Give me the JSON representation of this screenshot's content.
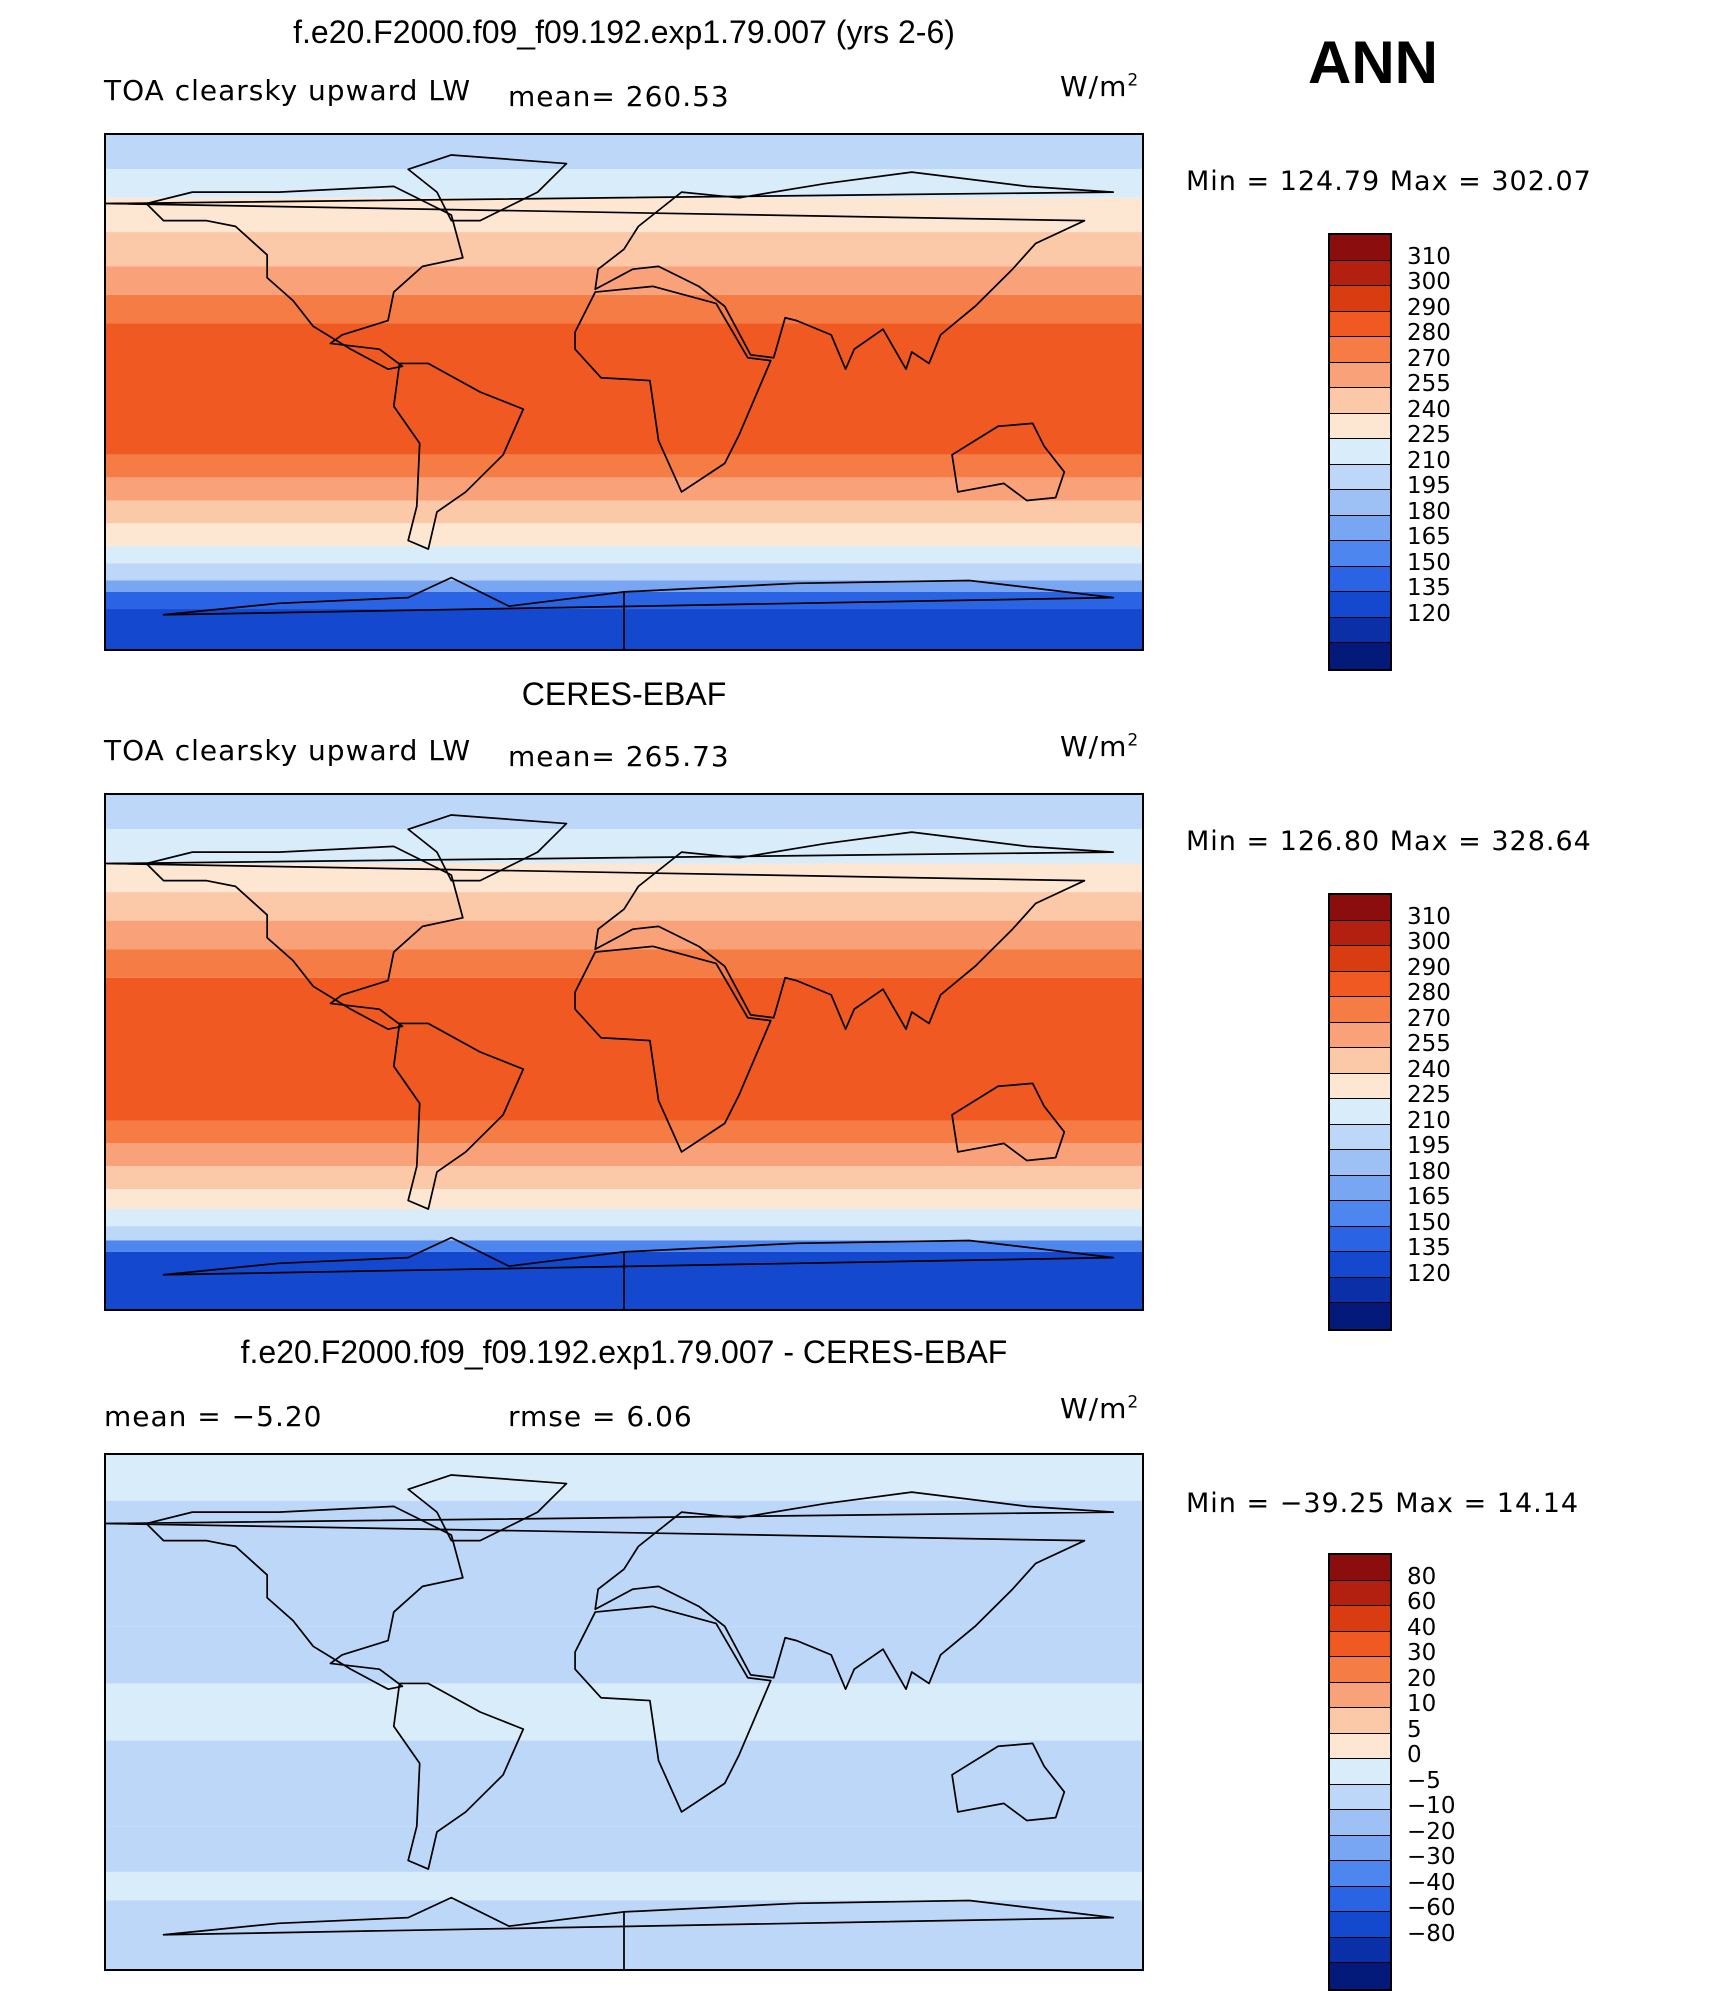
{
  "season": "ANN",
  "panels": [
    {
      "title": "f.e20.F2000.f09_f09.192.exp1.79.007 (yrs 2-6)",
      "left_text": "TOA clearsky upward LW",
      "mid_text": "mean=  260.53",
      "units_base": "W/m",
      "units_exp": "2",
      "minmax": "Min  =  124.79  Max  =  302.07",
      "colorbar": {
        "labels": [
          "310",
          "300",
          "290",
          "280",
          "270",
          "255",
          "240",
          "225",
          "210",
          "195",
          "180",
          "165",
          "150",
          "135",
          "120"
        ],
        "colors": [
          "#8c0d0d",
          "#b3200f",
          "#d93c10",
          "#f05a22",
          "#f57d45",
          "#f9a27a",
          "#fbc8a8",
          "#fde7d3",
          "#d9ecfa",
          "#bcd7f7",
          "#9dc0f5",
          "#78a6f2",
          "#4d86ee",
          "#2a63e4",
          "#1448cf",
          "#0a2fa6",
          "#041a7a"
        ]
      },
      "bands": [
        {
          "lat": 90,
          "color": "#bcd7f7"
        },
        {
          "lat": 78,
          "color": "#d9ecfa"
        },
        {
          "lat": 68,
          "color": "#fde7d3"
        },
        {
          "lat": 56,
          "color": "#fbc8a8"
        },
        {
          "lat": 44,
          "color": "#f9a27a"
        },
        {
          "lat": 34,
          "color": "#f57d45"
        },
        {
          "lat": 24,
          "color": "#f05a22"
        },
        {
          "lat": -22,
          "color": "#f57d45"
        },
        {
          "lat": -30,
          "color": "#f9a27a"
        },
        {
          "lat": -38,
          "color": "#fbc8a8"
        },
        {
          "lat": -46,
          "color": "#fde7d3"
        },
        {
          "lat": -54,
          "color": "#d9ecfa"
        },
        {
          "lat": -60,
          "color": "#bcd7f7"
        },
        {
          "lat": -66,
          "color": "#78a6f2"
        },
        {
          "lat": -70,
          "color": "#2a63e4"
        },
        {
          "lat": -76,
          "color": "#1448cf"
        }
      ]
    },
    {
      "title": "CERES-EBAF",
      "left_text": "TOA clearsky upward LW",
      "mid_text": "mean=  265.73",
      "units_base": "W/m",
      "units_exp": "2",
      "minmax": "Min  =  126.80  Max  =  328.64",
      "colorbar": {
        "labels": [
          "310",
          "300",
          "290",
          "280",
          "270",
          "255",
          "240",
          "225",
          "210",
          "195",
          "180",
          "165",
          "150",
          "135",
          "120"
        ],
        "colors": [
          "#8c0d0d",
          "#b3200f",
          "#d93c10",
          "#f05a22",
          "#f57d45",
          "#f9a27a",
          "#fbc8a8",
          "#fde7d3",
          "#d9ecfa",
          "#bcd7f7",
          "#9dc0f5",
          "#78a6f2",
          "#4d86ee",
          "#2a63e4",
          "#1448cf",
          "#0a2fa6",
          "#041a7a"
        ]
      },
      "bands": [
        {
          "lat": 90,
          "color": "#bcd7f7"
        },
        {
          "lat": 78,
          "color": "#d9ecfa"
        },
        {
          "lat": 66,
          "color": "#fde7d3"
        },
        {
          "lat": 56,
          "color": "#fbc8a8"
        },
        {
          "lat": 46,
          "color": "#f9a27a"
        },
        {
          "lat": 36,
          "color": "#f57d45"
        },
        {
          "lat": 26,
          "color": "#f05a22"
        },
        {
          "lat": -24,
          "color": "#f57d45"
        },
        {
          "lat": -32,
          "color": "#f9a27a"
        },
        {
          "lat": -40,
          "color": "#fbc8a8"
        },
        {
          "lat": -48,
          "color": "#fde7d3"
        },
        {
          "lat": -55,
          "color": "#d9ecfa"
        },
        {
          "lat": -61,
          "color": "#bcd7f7"
        },
        {
          "lat": -66,
          "color": "#4d86ee"
        },
        {
          "lat": -70,
          "color": "#1448cf"
        }
      ]
    },
    {
      "title": "f.e20.F2000.f09_f09.192.exp1.79.007 - CERES-EBAF",
      "left_text": "mean  =    −5.20",
      "mid_text": "rmse  =     6.06",
      "units_base": "W/m",
      "units_exp": "2",
      "minmax": "Min  =  −39.25  Max  =    14.14",
      "colorbar": {
        "labels": [
          "80",
          "60",
          "40",
          "30",
          "20",
          "10",
          "5",
          "0",
          "−5",
          "−10",
          "−20",
          "−30",
          "−40",
          "−60",
          "−80"
        ],
        "colors": [
          "#8c0d0d",
          "#b3200f",
          "#d93c10",
          "#f05a22",
          "#f57d45",
          "#f9a27a",
          "#fbc8a8",
          "#fde7d3",
          "#d9ecfa",
          "#bcd7f7",
          "#9dc0f5",
          "#78a6f2",
          "#4d86ee",
          "#2a63e4",
          "#1448cf",
          "#0a2fa6",
          "#041a7a"
        ]
      },
      "bands": [
        {
          "lat": 90,
          "color": "#d9ecfa"
        },
        {
          "lat": 74,
          "color": "#bcd7f7"
        },
        {
          "lat": 30,
          "color": "#bcd7f7"
        },
        {
          "lat": 10,
          "color": "#d9ecfa"
        },
        {
          "lat": -10,
          "color": "#bcd7f7"
        },
        {
          "lat": -40,
          "color": "#bcd7f7"
        },
        {
          "lat": -56,
          "color": "#d9ecfa"
        },
        {
          "lat": -66,
          "color": "#bcd7f7"
        }
      ]
    }
  ]
}
